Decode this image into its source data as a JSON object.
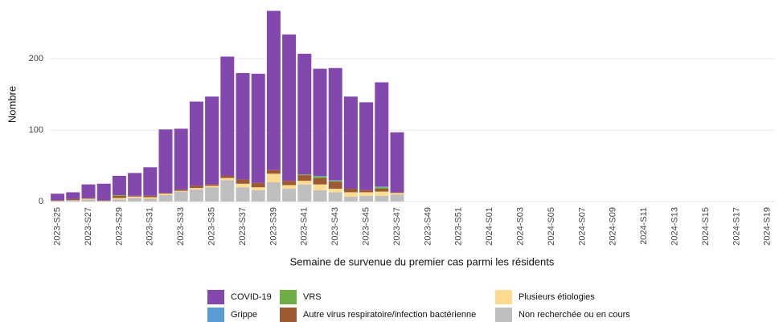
{
  "chart_data": {
    "type": "stacked_bar",
    "x_label": "Semaine de survenue du premier cas parmi les résidents",
    "y_label": "Nombre",
    "categories": [
      "2023-S25",
      null,
      "2023-S27",
      null,
      "2023-S29",
      null,
      "2023-S31",
      null,
      "2023-S33",
      null,
      "2023-S35",
      null,
      "2023-S37",
      null,
      "2023-S39",
      null,
      "2023-S41",
      null,
      "2023-S43",
      null,
      "2023-S45",
      null,
      "2023-S47",
      null,
      "2023-S49",
      null,
      "2023-S51",
      null,
      "2024-S01",
      null,
      "2024-S03",
      null,
      "2024-S05",
      null,
      "2024-S07",
      null,
      "2024-S09",
      null,
      "2024-S11",
      null,
      "2024-S13",
      null,
      "2024-S15",
      null,
      "2024-S17",
      null,
      "2024-S19"
    ],
    "ylim": [
      0,
      280
    ],
    "yticks": [
      0,
      100,
      200
    ],
    "grid": true,
    "series": [
      {
        "name": "COVID-19",
        "color": "#8348ad",
        "values": [
          9,
          9,
          19,
          23,
          27,
          32,
          40,
          89,
          85,
          118,
          123,
          167,
          149,
          153,
          223,
          205,
          169,
          150,
          157,
          129,
          123,
          146,
          84,
          0,
          0,
          0,
          0,
          0,
          0,
          0,
          0,
          0,
          0,
          0,
          0,
          0,
          0,
          0,
          0,
          0,
          0,
          0,
          0,
          0,
          0,
          0,
          0
        ]
      },
      {
        "name": "Grippe",
        "color": "#5b9bd5",
        "values": [
          0,
          0,
          0,
          0,
          0,
          0,
          0,
          0,
          0,
          0,
          0,
          0,
          0,
          0,
          0,
          0,
          0,
          1,
          1,
          0,
          0,
          1,
          0,
          0,
          0,
          0,
          0,
          0,
          0,
          0,
          0,
          0,
          0,
          0,
          0,
          0,
          0,
          0,
          0,
          0,
          0,
          0,
          0,
          0,
          0,
          0,
          0
        ]
      },
      {
        "name": "VRS",
        "color": "#70ad47",
        "values": [
          0,
          0,
          0,
          0,
          1,
          0,
          0,
          0,
          0,
          0,
          0,
          0,
          0,
          0,
          0,
          0,
          1,
          2,
          1,
          0,
          0,
          2,
          0,
          0,
          0,
          0,
          0,
          0,
          0,
          0,
          0,
          0,
          0,
          0,
          0,
          0,
          0,
          0,
          0,
          0,
          0,
          0,
          0,
          0,
          0,
          0,
          0
        ]
      },
      {
        "name": "Autre virus respiratoire/infection bactérienne",
        "color": "#9c5a33",
        "values": [
          1,
          2,
          1,
          1,
          3,
          1,
          2,
          1,
          2,
          3,
          2,
          3,
          6,
          6,
          5,
          6,
          8,
          9,
          10,
          5,
          3,
          4,
          1,
          0,
          0,
          0,
          0,
          0,
          0,
          0,
          0,
          0,
          0,
          0,
          0,
          0,
          0,
          0,
          0,
          0,
          0,
          0,
          0,
          0,
          0,
          0,
          0
        ]
      },
      {
        "name": "Plusieurs étiologies",
        "color": "#fddc91",
        "values": [
          0,
          0,
          1,
          0,
          2,
          2,
          2,
          2,
          1,
          2,
          2,
          3,
          5,
          4,
          12,
          5,
          5,
          8,
          5,
          6,
          5,
          6,
          2,
          0,
          0,
          0,
          0,
          0,
          0,
          0,
          0,
          0,
          0,
          0,
          0,
          0,
          0,
          0,
          0,
          0,
          0,
          0,
          0,
          0,
          0,
          0,
          0
        ]
      },
      {
        "name": "Non recherchée ou en cours",
        "color": "#bfbfbf",
        "values": [
          1,
          2,
          3,
          1,
          3,
          5,
          4,
          9,
          14,
          17,
          20,
          30,
          20,
          16,
          27,
          18,
          24,
          16,
          13,
          7,
          8,
          8,
          10,
          0,
          0,
          0,
          0,
          0,
          0,
          0,
          0,
          0,
          0,
          0,
          0,
          0,
          0,
          0,
          0,
          0,
          0,
          0,
          0,
          0,
          0,
          0,
          0
        ]
      }
    ]
  }
}
